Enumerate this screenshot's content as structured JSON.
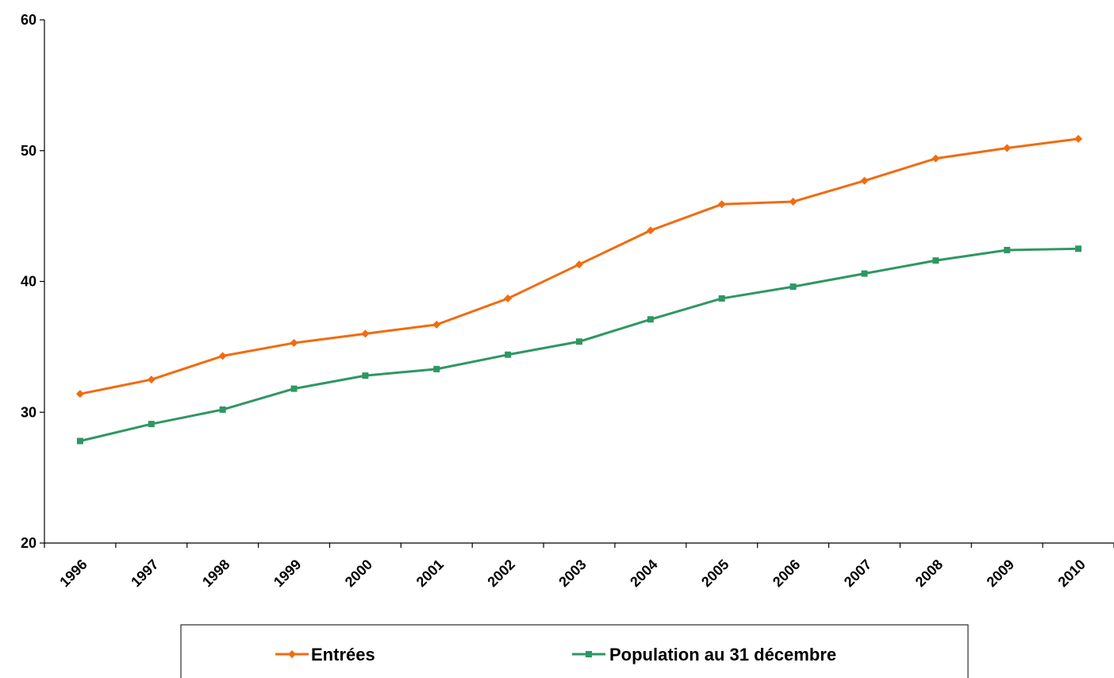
{
  "chart_data": {
    "type": "line",
    "categories": [
      "1996",
      "1997",
      "1998",
      "1999",
      "2000",
      "2001",
      "2002",
      "2003",
      "2004",
      "2005",
      "2006",
      "2007",
      "2008",
      "2009",
      "2010"
    ],
    "series": [
      {
        "name": "Entrées",
        "color": "#f26b0f",
        "marker": "diamond",
        "values": [
          31.4,
          32.5,
          34.3,
          35.3,
          36.0,
          36.7,
          38.7,
          41.3,
          43.9,
          45.9,
          46.1,
          47.7,
          49.4,
          50.2,
          50.9
        ]
      },
      {
        "name": "Population au 31 décembre",
        "color": "#2e9764",
        "marker": "square",
        "values": [
          27.8,
          29.1,
          30.2,
          31.8,
          32.8,
          33.3,
          34.4,
          35.4,
          37.1,
          38.7,
          39.6,
          40.6,
          41.6,
          42.4,
          42.5
        ]
      }
    ],
    "yticks": [
      "20",
      "30",
      "40",
      "50",
      "60"
    ],
    "ylim": [
      20,
      60
    ],
    "title": "",
    "xlabel": "",
    "ylabel": "",
    "grid": false,
    "legend_position": "bottom"
  }
}
